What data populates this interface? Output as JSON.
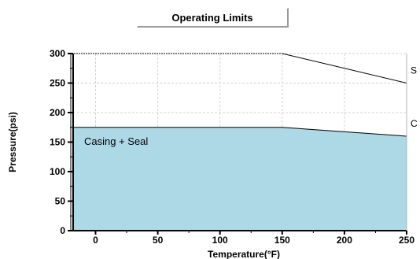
{
  "title": "Operating Limits",
  "chart_data": {
    "type": "area",
    "xlabel": "Temperature(°F)",
    "ylabel": "Pressure(psi)",
    "xlim": [
      -18,
      250
    ],
    "ylim": [
      0,
      300
    ],
    "x_ticks": [
      0,
      50,
      100,
      150,
      200,
      250
    ],
    "y_ticks": [
      0,
      50,
      100,
      150,
      200,
      250,
      300
    ],
    "grid": true,
    "fill_color": "#add8e6",
    "series": [
      {
        "name": "S",
        "x": [
          -18,
          150,
          250
        ],
        "y": [
          300,
          300,
          250
        ]
      },
      {
        "name": "C",
        "x": [
          -18,
          150,
          250
        ],
        "y": [
          175,
          175,
          160
        ]
      }
    ],
    "annotations": [
      {
        "text": "Casing + Seal"
      }
    ]
  }
}
